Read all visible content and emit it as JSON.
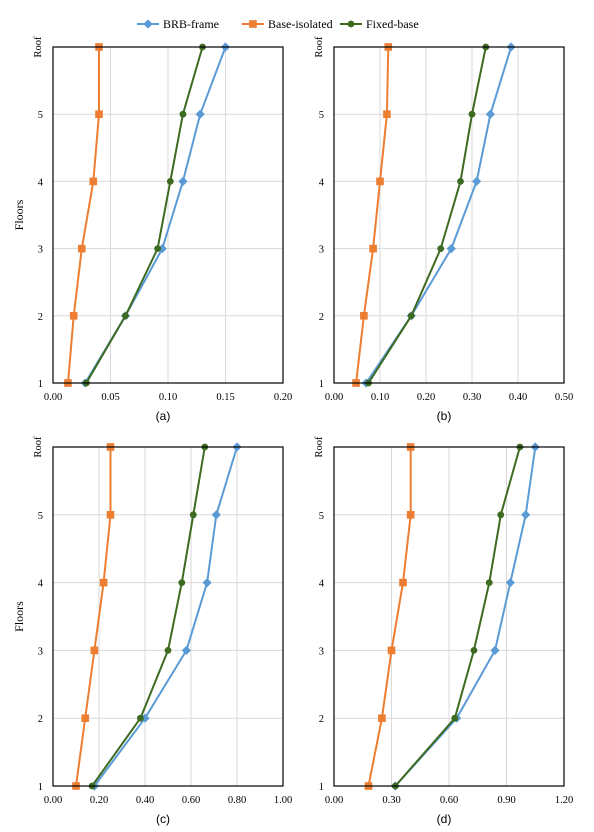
{
  "legend": [
    {
      "name": "BRB-frame",
      "color": "#5b9bd5",
      "marker": "diamond"
    },
    {
      "name": "Base-isolated",
      "color": "#ed7d31",
      "marker": "square"
    },
    {
      "name": "Fixed-base",
      "color": "#3e6b22",
      "marker": "circle"
    }
  ],
  "chart_data": [
    {
      "type": "line",
      "caption": "(a)",
      "ylabel": "Floors",
      "yticks": [
        "1",
        "2",
        "3",
        "4",
        "5",
        "Roof"
      ],
      "xlim": [
        0,
        0.2
      ],
      "xticks": [
        "0.00",
        "0.05",
        "0.10",
        "0.15",
        "0.20"
      ],
      "grid": true,
      "series": [
        {
          "name": "BRB-frame",
          "points": [
            [
              0.028,
              1
            ],
            [
              0.063,
              2
            ],
            [
              0.095,
              3
            ],
            [
              0.113,
              4
            ],
            [
              0.128,
              5
            ],
            [
              0.15,
              6
            ]
          ]
        },
        {
          "name": "Base-isolated",
          "points": [
            [
              0.013,
              1
            ],
            [
              0.018,
              2
            ],
            [
              0.025,
              3
            ],
            [
              0.035,
              4
            ],
            [
              0.04,
              5
            ],
            [
              0.04,
              6
            ]
          ]
        },
        {
          "name": "Fixed-base",
          "points": [
            [
              0.029,
              1
            ],
            [
              0.063,
              2
            ],
            [
              0.091,
              3
            ],
            [
              0.102,
              4
            ],
            [
              0.113,
              5
            ],
            [
              0.13,
              6
            ]
          ]
        }
      ]
    },
    {
      "type": "line",
      "caption": "(b)",
      "ylabel": "",
      "yticks": [
        "1",
        "2",
        "3",
        "4",
        "5",
        "Roof"
      ],
      "xlim": [
        0,
        0.5
      ],
      "xticks": [
        "0.00",
        "0.10",
        "0.20",
        "0.30",
        "0.40",
        "0.50"
      ],
      "grid": true,
      "series": [
        {
          "name": "BRB-frame",
          "points": [
            [
              0.07,
              1
            ],
            [
              0.168,
              2
            ],
            [
              0.255,
              3
            ],
            [
              0.31,
              4
            ],
            [
              0.34,
              5
            ],
            [
              0.385,
              6
            ]
          ]
        },
        {
          "name": "Base-isolated",
          "points": [
            [
              0.048,
              1
            ],
            [
              0.065,
              2
            ],
            [
              0.085,
              3
            ],
            [
              0.1,
              4
            ],
            [
              0.115,
              5
            ],
            [
              0.118,
              6
            ]
          ]
        },
        {
          "name": "Fixed-base",
          "points": [
            [
              0.075,
              1
            ],
            [
              0.168,
              2
            ],
            [
              0.232,
              3
            ],
            [
              0.275,
              4
            ],
            [
              0.3,
              5
            ],
            [
              0.33,
              6
            ]
          ]
        }
      ]
    },
    {
      "type": "line",
      "caption": "(c)",
      "ylabel": "Floors",
      "yticks": [
        "1",
        "2",
        "3",
        "4",
        "5",
        "Roof"
      ],
      "xlim": [
        0,
        1
      ],
      "xticks": [
        "0.00",
        "0.20",
        "0.40",
        "0.60",
        "0.80",
        "1.00"
      ],
      "grid": true,
      "series": [
        {
          "name": "BRB-frame",
          "points": [
            [
              0.18,
              1
            ],
            [
              0.4,
              2
            ],
            [
              0.58,
              3
            ],
            [
              0.67,
              4
            ],
            [
              0.71,
              5
            ],
            [
              0.8,
              6
            ]
          ]
        },
        {
          "name": "Base-isolated",
          "points": [
            [
              0.1,
              1
            ],
            [
              0.14,
              2
            ],
            [
              0.18,
              3
            ],
            [
              0.22,
              4
            ],
            [
              0.25,
              5
            ],
            [
              0.25,
              6
            ]
          ]
        },
        {
          "name": "Fixed-base",
          "points": [
            [
              0.17,
              1
            ],
            [
              0.38,
              2
            ],
            [
              0.5,
              3
            ],
            [
              0.56,
              4
            ],
            [
              0.61,
              5
            ],
            [
              0.66,
              6
            ]
          ]
        }
      ]
    },
    {
      "type": "line",
      "caption": "(d)",
      "ylabel": "",
      "yticks": [
        "1",
        "2",
        "3",
        "4",
        "5",
        "Roof"
      ],
      "xlim": [
        0,
        1.2
      ],
      "xticks": [
        "0.00",
        "0.30",
        "0.60",
        "0.90",
        "1.20"
      ],
      "grid": true,
      "series": [
        {
          "name": "BRB-frame",
          "points": [
            [
              0.32,
              1
            ],
            [
              0.64,
              2
            ],
            [
              0.84,
              3
            ],
            [
              0.92,
              4
            ],
            [
              1.0,
              5
            ],
            [
              1.05,
              6
            ]
          ]
        },
        {
          "name": "Base-isolated",
          "points": [
            [
              0.18,
              1
            ],
            [
              0.25,
              2
            ],
            [
              0.3,
              3
            ],
            [
              0.36,
              4
            ],
            [
              0.4,
              5
            ],
            [
              0.4,
              6
            ]
          ]
        },
        {
          "name": "Fixed-base",
          "points": [
            [
              0.32,
              1
            ],
            [
              0.63,
              2
            ],
            [
              0.73,
              3
            ],
            [
              0.81,
              4
            ],
            [
              0.87,
              5
            ],
            [
              0.97,
              6
            ]
          ]
        }
      ]
    }
  ]
}
